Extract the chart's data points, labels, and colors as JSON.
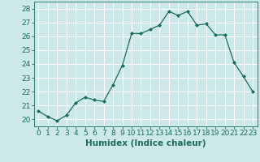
{
  "x": [
    0,
    1,
    2,
    3,
    4,
    5,
    6,
    7,
    8,
    9,
    10,
    11,
    12,
    13,
    14,
    15,
    16,
    17,
    18,
    19,
    20,
    21,
    22,
    23
  ],
  "y": [
    20.6,
    20.2,
    19.9,
    20.3,
    21.2,
    21.6,
    21.4,
    21.3,
    22.5,
    23.9,
    26.2,
    26.2,
    26.5,
    26.8,
    27.8,
    27.5,
    27.8,
    26.8,
    26.9,
    26.1,
    26.1,
    24.1,
    23.1,
    22.0
  ],
  "line_color": "#1a6b5e",
  "marker": "D",
  "marker_size": 2.0,
  "bg_color": "#cde8e8",
  "grid_color": "#ffffff",
  "xlabel": "Humidex (Indice chaleur)",
  "ylim": [
    19.5,
    28.5
  ],
  "xlim": [
    -0.5,
    23.5
  ],
  "yticks": [
    20,
    21,
    22,
    23,
    24,
    25,
    26,
    27,
    28
  ],
  "xticks": [
    0,
    1,
    2,
    3,
    4,
    5,
    6,
    7,
    8,
    9,
    10,
    11,
    12,
    13,
    14,
    15,
    16,
    17,
    18,
    19,
    20,
    21,
    22,
    23
  ],
  "tick_label_fontsize": 6.5,
  "xlabel_fontsize": 7.5,
  "tick_color": "#1a6b5e",
  "axis_color": "#1a6b5e",
  "linewidth": 0.9
}
